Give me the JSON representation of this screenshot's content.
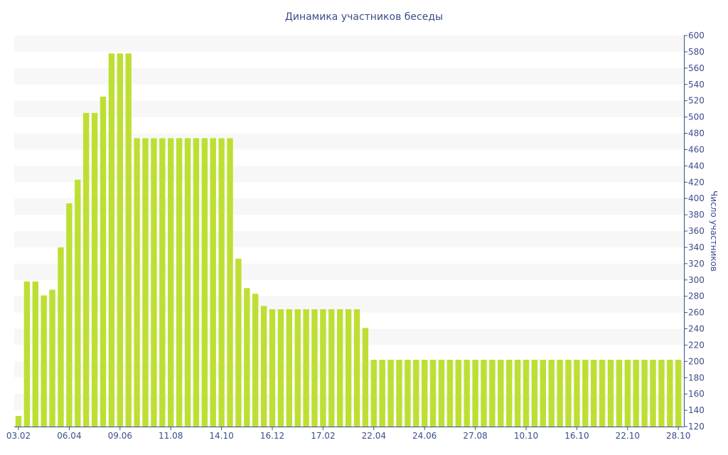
{
  "chart_data": {
    "type": "bar",
    "title": "Динамика участников беседы",
    "ylabel": "Число участников",
    "ylim": [
      120,
      600
    ],
    "y_ticks": [
      120,
      140,
      160,
      180,
      200,
      220,
      240,
      260,
      280,
      300,
      320,
      340,
      360,
      380,
      400,
      420,
      440,
      460,
      480,
      500,
      520,
      540,
      560,
      580,
      600
    ],
    "y_axis_side": "right",
    "grid": "horizontal-bands",
    "legend": "none",
    "x_tick_labels": [
      "03.02",
      "06.04",
      "09.06",
      "11.08",
      "14.10",
      "16.12",
      "17.02",
      "22.04",
      "24.06",
      "27.08",
      "10.10",
      "16.10",
      "22.10",
      "28.10"
    ],
    "x_tick_label_bar_index": [
      0,
      6,
      12,
      18,
      24,
      30,
      36,
      42,
      48,
      54,
      60,
      66,
      72,
      78
    ],
    "values": [
      133,
      298,
      298,
      281,
      288,
      340,
      394,
      423,
      505,
      505,
      525,
      578,
      578,
      578,
      474,
      474,
      474,
      474,
      474,
      474,
      474,
      474,
      474,
      474,
      474,
      474,
      326,
      290,
      283,
      268,
      264,
      264,
      264,
      264,
      264,
      264,
      264,
      264,
      264,
      264,
      264,
      241,
      202,
      202,
      202,
      202,
      202,
      202,
      202,
      202,
      202,
      202,
      202,
      202,
      202,
      202,
      202,
      202,
      202,
      202,
      202,
      202,
      202,
      202,
      202,
      202,
      202,
      202,
      202,
      202,
      202,
      202,
      202,
      202,
      202,
      202,
      202,
      202,
      202
    ],
    "colors": {
      "bar": "#bddf34",
      "band": "#f7f7f7",
      "axis": "#3b4d8c",
      "text": "#3b4d8c"
    }
  }
}
